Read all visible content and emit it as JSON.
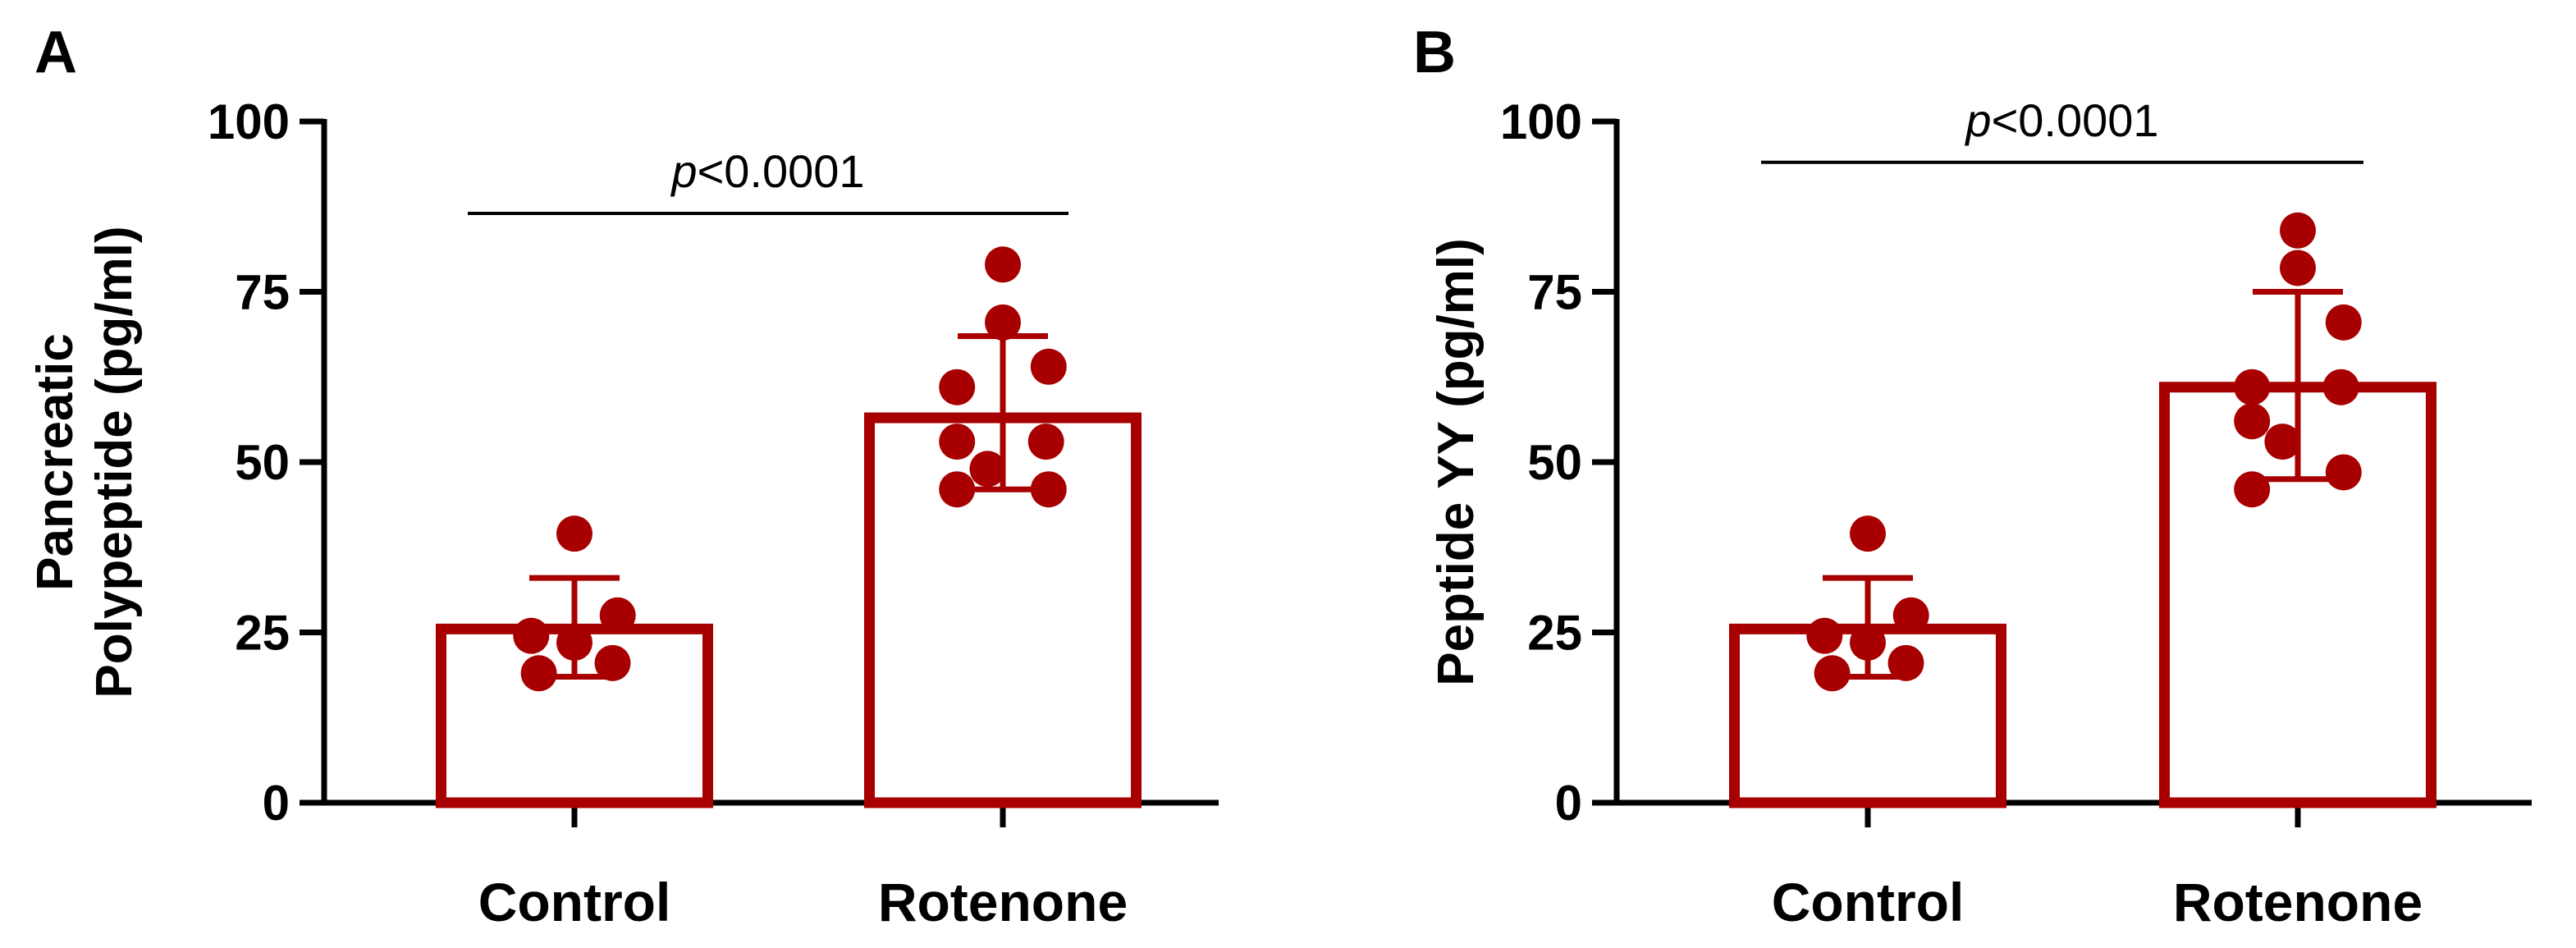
{
  "colors": {
    "accent": "#a80000",
    "axis": "#000000",
    "background": "#ffffff"
  },
  "chart_data": [
    {
      "type": "bar",
      "panel_label": "A",
      "title": "",
      "xlabel": "",
      "ylabel_lines": [
        "Pancreatic",
        "Polypeptide (pg/ml)"
      ],
      "ylim": [
        0,
        100
      ],
      "yticks": [
        0,
        25,
        50,
        75,
        100
      ],
      "categories": [
        "Control",
        "Rotenone"
      ],
      "values": [
        25.5,
        56.5
      ],
      "error_upper": [
        33,
        68.5
      ],
      "error_lower": [
        18.5,
        46
      ],
      "points": [
        [
          39.5,
          24.5,
          27.5,
          23.5,
          19,
          20.5
        ],
        [
          79,
          70.5,
          64,
          61,
          53,
          53,
          49,
          46,
          46
        ]
      ],
      "significance": {
        "p_symbol": "p",
        "text": "<0.0001",
        "y": 86.5
      },
      "grid": false,
      "legend": "none"
    },
    {
      "type": "bar",
      "panel_label": "B",
      "title": "",
      "xlabel": "",
      "ylabel_lines": [
        "Peptide YY (pg/ml)"
      ],
      "ylim": [
        0,
        100
      ],
      "yticks": [
        0,
        25,
        50,
        75,
        100
      ],
      "categories": [
        "Control",
        "Rotenone"
      ],
      "values": [
        25.5,
        61
      ],
      "error_upper": [
        33,
        75
      ],
      "error_lower": [
        18.5,
        47.5
      ],
      "points": [
        [
          39.5,
          24.5,
          27.5,
          23.5,
          19,
          20.5
        ],
        [
          84,
          78.5,
          70.5,
          61,
          61,
          56,
          53,
          48.5,
          46
        ]
      ],
      "significance": {
        "p_symbol": "p",
        "text": "<0.0001",
        "y": 94
      },
      "grid": false,
      "legend": "none"
    }
  ]
}
